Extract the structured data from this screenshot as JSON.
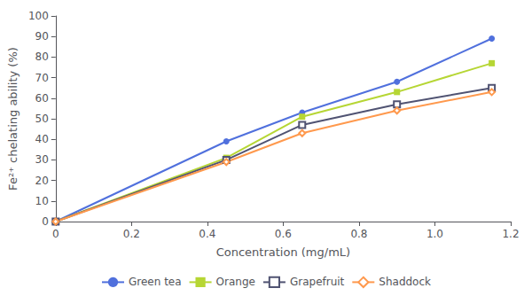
{
  "chart_data": {
    "type": "line",
    "x_label": "Concentration (mg/mL)",
    "y_label": "Fe²⁺ chelating ability (%)",
    "x": [
      0,
      0.45,
      0.65,
      0.9,
      1.15
    ],
    "series": [
      {
        "name": "Green tea",
        "values": [
          0,
          39,
          53,
          68,
          89
        ],
        "marker": "circle"
      },
      {
        "name": "Orange",
        "values": [
          0,
          31,
          51,
          63,
          77
        ],
        "marker": "square"
      },
      {
        "name": "Grapefruit",
        "values": [
          0,
          30,
          47,
          57,
          65
        ],
        "marker": "square-open"
      },
      {
        "name": "Shaddock",
        "values": [
          0,
          29,
          43,
          54,
          63
        ],
        "marker": "diamond-open"
      }
    ],
    "xlim": [
      0,
      1.2
    ],
    "xticks": [
      0,
      0.2,
      0.4,
      0.6,
      0.8,
      {
        "value": 1,
        "label": "1.0"
      },
      1.2
    ],
    "ylim": [
      0,
      100
    ],
    "yticks": [
      0,
      10,
      20,
      30,
      40,
      50,
      60,
      70,
      80,
      90,
      100
    ],
    "grid": false,
    "legend": "bottom"
  }
}
